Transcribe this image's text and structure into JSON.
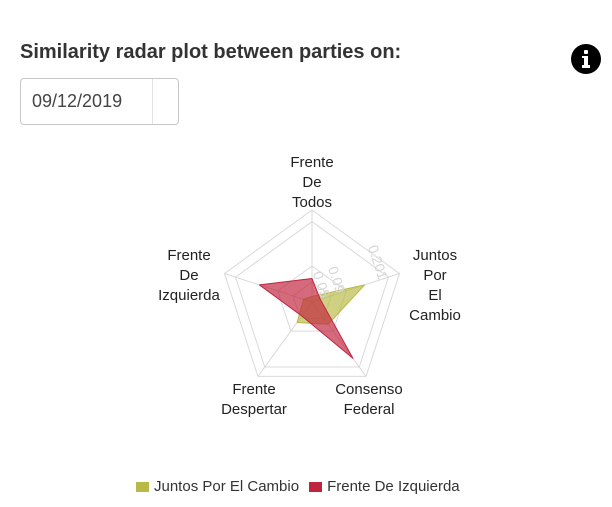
{
  "header": {
    "title": "Similarity radar plot between parties on:"
  },
  "date_picker": {
    "value": "09/12/2019"
  },
  "icons": {
    "info": "info-icon"
  },
  "chart_data": {
    "type": "radar",
    "title": "",
    "axes": [
      {
        "name": "Frente De Todos",
        "lines": [
          "Frente",
          "De",
          "Todos"
        ]
      },
      {
        "name": "Juntos Por El Cambio",
        "lines": [
          "Juntos",
          "Por",
          "El",
          "Cambio"
        ]
      },
      {
        "name": "Consenso Federal",
        "lines": [
          "Consenso",
          "Federal"
        ]
      },
      {
        "name": "Frente Despertar",
        "lines": [
          "Frente",
          "Despertar"
        ]
      },
      {
        "name": "Frente De Izquierda",
        "lines": [
          "Frente",
          "De",
          "Izquierda"
        ]
      }
    ],
    "scale": {
      "min": 0,
      "max": 0.23
    },
    "tick_labels": [
      "0.05",
      "0.09",
      "0.201"
    ],
    "ticks": [
      0.05,
      0.09,
      0.201
    ],
    "gridlines": true,
    "legend_position": "bottom",
    "series": [
      {
        "name": "Juntos Por El Cambio",
        "color": "#b8ba45",
        "values": [
          0.0138,
          0.1383,
          0.0687,
          0.0633,
          0.0222
        ]
      },
      {
        "name": "Frente De Izquierda",
        "color": "#c0243d",
        "values": [
          0.0587,
          0.0217,
          0.1743,
          0.0433,
          0.1381
        ]
      }
    ]
  }
}
